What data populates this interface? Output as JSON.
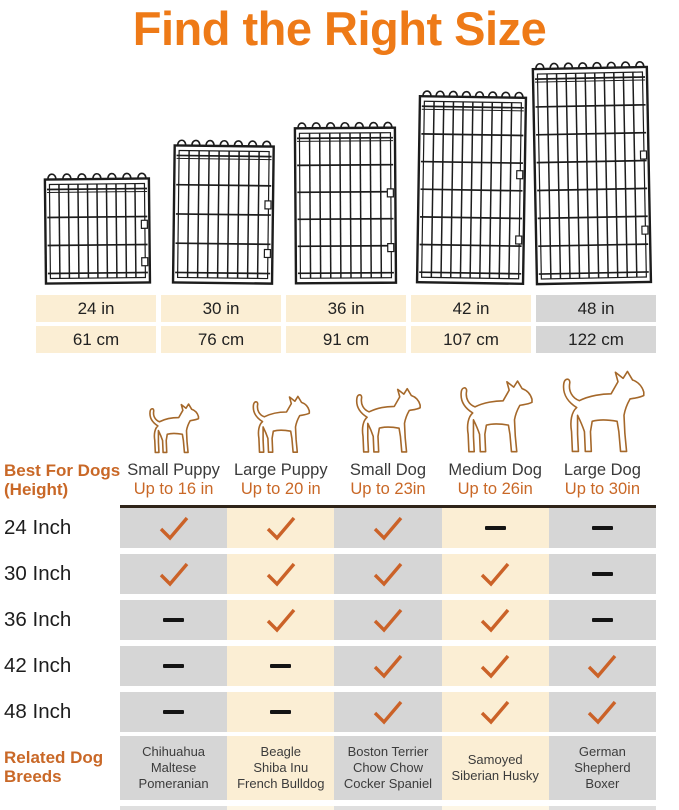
{
  "title": "Find the Right Size",
  "colors": {
    "title_orange": "#ee7a17",
    "accent_orange": "#c96827",
    "check_orange": "#cb6228",
    "cream": "#fbeed4",
    "gray": "#d6d6d6",
    "cream_faded": "#fdf6e5",
    "gray_faded": "#dfdfdf",
    "wire_black": "#1c1c1c",
    "dog_outline": "#a5682a",
    "rule_dark": "#2f2419"
  },
  "size_table": {
    "inches": [
      "24 in",
      "30 in",
      "36 in",
      "42 in",
      "48 in"
    ],
    "centimeters": [
      "61 cm",
      "76 cm",
      "91 cm",
      "107 cm",
      "122 cm"
    ]
  },
  "left_header": {
    "line1": "Best For Dogs",
    "line2": "(Height)"
  },
  "dog_columns": [
    {
      "name": "Small Puppy",
      "height": "Up to 16 in"
    },
    {
      "name": "Large Puppy",
      "height": "Up to 20 in"
    },
    {
      "name": "Small Dog",
      "height": "Up to 23in"
    },
    {
      "name": "Medium Dog",
      "height": "Up to 26in"
    },
    {
      "name": "Large Dog",
      "height": "Up to 30in"
    }
  ],
  "compatibility": {
    "row_labels": [
      "24 Inch",
      "30 Inch",
      "36 Inch",
      "42 Inch",
      "48 Inch"
    ],
    "matrix": [
      [
        "check",
        "check",
        "check",
        "dash",
        "dash"
      ],
      [
        "check",
        "check",
        "check",
        "check",
        "dash"
      ],
      [
        "dash",
        "check",
        "check",
        "check",
        "dash"
      ],
      [
        "dash",
        "dash",
        "check",
        "check",
        "check"
      ],
      [
        "dash",
        "dash",
        "check",
        "check",
        "check"
      ]
    ]
  },
  "related_header": {
    "line1": "Related Dog",
    "line2": "Breeds"
  },
  "related_breeds": [
    [
      "Chihuahua",
      "Maltese",
      "Pomeranian"
    ],
    [
      "Beagle",
      "Shiba Inu",
      "French Bulldog"
    ],
    [
      "Boston Terrier",
      "Chow Chow",
      "Cocker Spaniel"
    ],
    [
      "Samoyed",
      "Siberian Husky"
    ],
    [
      "German Shepherd",
      "Boxer"
    ]
  ],
  "chart_data": {
    "type": "table",
    "title": "Find the Right Size",
    "columns": [
      "Small Puppy (Up to 16 in)",
      "Large Puppy (Up to 20 in)",
      "Small Dog (Up to 23in)",
      "Medium Dog (Up to 26in)",
      "Large Dog (Up to 30in)"
    ],
    "rows": [
      "24 Inch (61 cm)",
      "30 Inch (76 cm)",
      "36 Inch (91 cm)",
      "42 Inch (107 cm)",
      "48 Inch (122 cm)"
    ],
    "values": [
      [
        true,
        true,
        true,
        false,
        false
      ],
      [
        true,
        true,
        true,
        true,
        false
      ],
      [
        false,
        true,
        true,
        true,
        false
      ],
      [
        false,
        false,
        true,
        true,
        true
      ],
      [
        false,
        false,
        true,
        true,
        true
      ]
    ]
  }
}
